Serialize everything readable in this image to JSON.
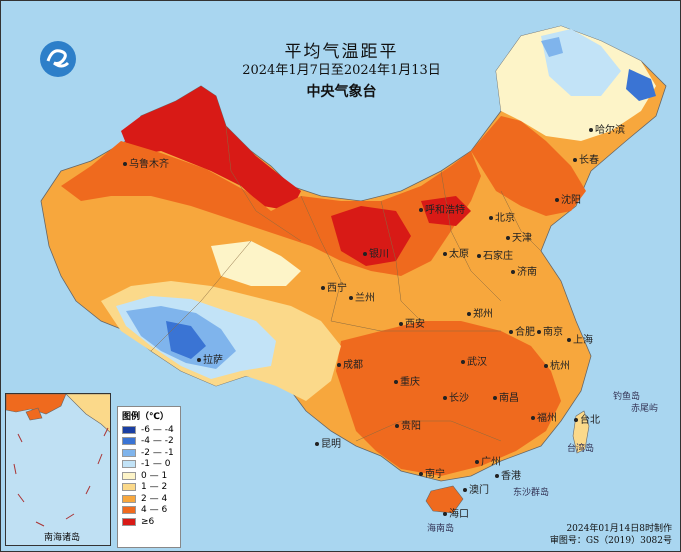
{
  "title": "平均气温距平",
  "date_range": "2024年1月7日至2024年1月13日",
  "issuer": "中央气象台",
  "legend": {
    "title": "图例（℃）",
    "items": [
      {
        "label": "-6 — -4",
        "color": "#1a3fa3"
      },
      {
        "label": "-4 — -2",
        "color": "#3a74d4"
      },
      {
        "label": "-2 — -1",
        "color": "#7fb4ec"
      },
      {
        "label": "-1 — 0",
        "color": "#c2e3f7"
      },
      {
        "label": "0 — 1",
        "color": "#fdf4c8"
      },
      {
        "label": "1 — 2",
        "color": "#fbd98a"
      },
      {
        "label": "2 — 4",
        "color": "#f7a73d"
      },
      {
        "label": "4 — 6",
        "color": "#ef6a1e"
      },
      {
        "label": "≥6",
        "color": "#d81a16"
      }
    ]
  },
  "cities": [
    "乌鲁木齐",
    "哈尔滨",
    "长春",
    "沈阳",
    "呼和浩特",
    "北京",
    "天津",
    "石家庄",
    "太原",
    "银川",
    "济南",
    "西宁",
    "兰州",
    "西安",
    "郑州",
    "合肥",
    "南京",
    "上海",
    "拉萨",
    "成都",
    "武汉",
    "杭州",
    "重庆",
    "长沙",
    "南昌",
    "福州",
    "贵阳",
    "昆明",
    "台北",
    "南宁",
    "广州",
    "香港",
    "澳门",
    "海口"
  ],
  "seas": [
    "钓鱼岛",
    "赤尾屿",
    "台湾岛",
    "东沙群岛",
    "海南岛"
  ],
  "inset": {
    "label": "南海诸岛"
  },
  "footer": {
    "produced": "2024年01月14日8时制作",
    "approval": "审图号：GS（2019）3082号"
  }
}
